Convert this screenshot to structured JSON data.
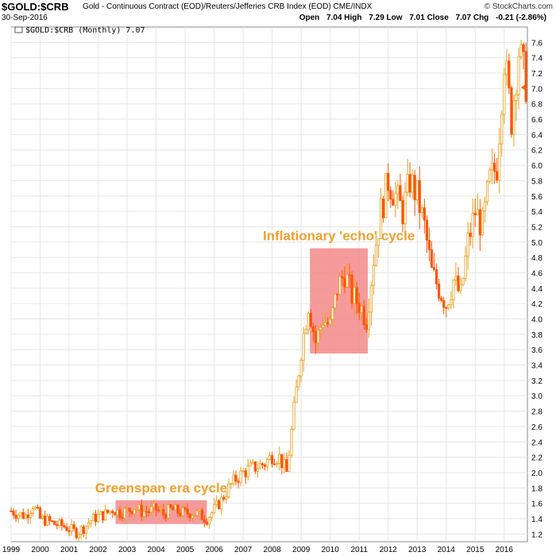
{
  "header": {
    "symbol": "$GOLD:$CRB",
    "description": "Gold - Continuous Contract (EOD)/Reuters/Jefferies CRB Index (EOD)  CME/INDX",
    "brand": "© StockCharts.com",
    "date": "30-Sep-2016",
    "open_label": "Open",
    "open": "7.04",
    "high_label": "High",
    "high": "7.29",
    "low_label": "Low",
    "low": "7.01",
    "close_label": "Close",
    "close": "7.07",
    "chg_label": "Chg",
    "chg": "-0.21 (-2.86%)"
  },
  "legend": "$GOLD:$CRB (Monthly) 7.07",
  "colors": {
    "up": "#e8a020",
    "down": "#ff5500",
    "highlight": "#f48a8a",
    "annotation": "#f0a030",
    "grid": "#e6e6e6"
  },
  "chart_data": {
    "type": "candlestick",
    "title": "$GOLD:$CRB (Monthly) 7.07",
    "x_ticks": [
      "1999",
      "2000",
      "2001",
      "2002",
      "2003",
      "2004",
      "2005",
      "2006",
      "2007",
      "2008",
      "2009",
      "2010",
      "2011",
      "2012",
      "2013",
      "2014",
      "2015",
      "2016"
    ],
    "y_ticks": [
      "1.2",
      "1.4",
      "1.6",
      "1.8",
      "2.0",
      "2.2",
      "2.4",
      "2.6",
      "2.8",
      "3.0",
      "3.2",
      "3.4",
      "3.6",
      "3.8",
      "4.0",
      "4.2",
      "4.4",
      "4.6",
      "4.8",
      "5.0",
      "5.2",
      "5.4",
      "5.6",
      "5.8",
      "6.0",
      "6.2",
      "6.4",
      "6.6",
      "6.8",
      "7.0",
      "7.2",
      "7.4",
      "7.6"
    ],
    "ylim": [
      1.1,
      7.8
    ],
    "xlim": [
      1999.0,
      2016.8
    ],
    "last_close": "7.07",
    "monthly_close": [
      [
        1999.0,
        1.5
      ],
      [
        1999.25,
        1.46
      ],
      [
        1999.5,
        1.44
      ],
      [
        1999.75,
        1.58
      ],
      [
        2000.0,
        1.4
      ],
      [
        2000.25,
        1.37
      ],
      [
        2000.5,
        1.33
      ],
      [
        2000.75,
        1.31
      ],
      [
        2001.0,
        1.27
      ],
      [
        2001.25,
        1.22
      ],
      [
        2001.5,
        1.28
      ],
      [
        2001.75,
        1.38
      ],
      [
        2002.0,
        1.43
      ],
      [
        2002.25,
        1.46
      ],
      [
        2002.5,
        1.52
      ],
      [
        2002.75,
        1.48
      ],
      [
        2003.0,
        1.5
      ],
      [
        2003.25,
        1.55
      ],
      [
        2003.5,
        1.49
      ],
      [
        2003.75,
        1.5
      ],
      [
        2004.0,
        1.52
      ],
      [
        2004.25,
        1.46
      ],
      [
        2004.5,
        1.52
      ],
      [
        2004.75,
        1.49
      ],
      [
        2005.0,
        1.47
      ],
      [
        2005.25,
        1.48
      ],
      [
        2005.5,
        1.45
      ],
      [
        2005.75,
        1.4
      ],
      [
        2006.0,
        1.52
      ],
      [
        2006.25,
        1.64
      ],
      [
        2006.5,
        1.8
      ],
      [
        2006.75,
        1.92
      ],
      [
        2007.0,
        2.0
      ],
      [
        2007.25,
        2.05
      ],
      [
        2007.5,
        2.08
      ],
      [
        2007.75,
        2.12
      ],
      [
        2008.0,
        2.22
      ],
      [
        2008.25,
        2.2
      ],
      [
        2008.5,
        2.0
      ],
      [
        2008.75,
        2.8
      ],
      [
        2009.0,
        3.6
      ],
      [
        2009.25,
        4.2
      ],
      [
        2009.5,
        3.7
      ],
      [
        2009.75,
        4.0
      ],
      [
        2010.0,
        3.9
      ],
      [
        2010.25,
        4.4
      ],
      [
        2010.5,
        4.6
      ],
      [
        2010.75,
        4.3
      ],
      [
        2011.0,
        4.2
      ],
      [
        2011.25,
        4.0
      ],
      [
        2011.5,
        4.8
      ],
      [
        2011.75,
        5.4
      ],
      [
        2012.0,
        5.8
      ],
      [
        2012.25,
        5.6
      ],
      [
        2012.5,
        5.4
      ],
      [
        2012.75,
        5.8
      ],
      [
        2013.0,
        5.6
      ],
      [
        2013.25,
        5.2
      ],
      [
        2013.5,
        4.6
      ],
      [
        2013.75,
        4.4
      ],
      [
        2014.0,
        4.2
      ],
      [
        2014.25,
        4.5
      ],
      [
        2014.5,
        4.3
      ],
      [
        2014.75,
        5.0
      ],
      [
        2015.0,
        5.4
      ],
      [
        2015.25,
        5.2
      ],
      [
        2015.5,
        5.8
      ],
      [
        2015.75,
        6.0
      ],
      [
        2016.0,
        7.4
      ],
      [
        2016.25,
        6.6
      ],
      [
        2016.5,
        7.5
      ],
      [
        2016.75,
        7.07
      ]
    ],
    "annotations": [
      {
        "text": "Inflationary 'echo' cycle",
        "x_range": [
          2009.3,
          2011.3
        ],
        "y_range": [
          3.55,
          4.92
        ]
      },
      {
        "text": "Greenspan era cycle",
        "x_range": [
          2002.6,
          2005.75
        ],
        "y_range": [
          1.33,
          1.64
        ]
      }
    ]
  }
}
